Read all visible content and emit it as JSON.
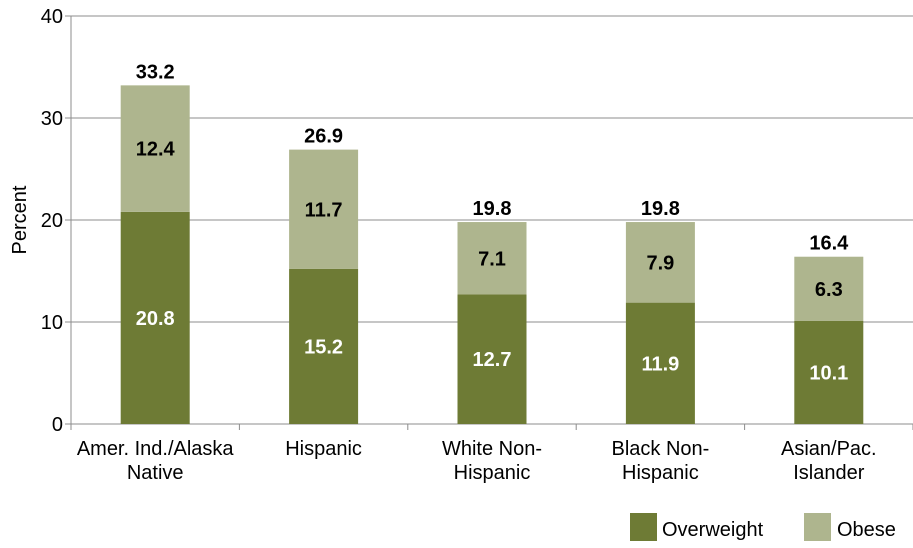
{
  "chart_data": {
    "type": "bar",
    "stacked": true,
    "title": "",
    "xlabel": "",
    "ylabel": "Percent",
    "ylim": [
      0,
      40
    ],
    "yticks": [
      0,
      10,
      20,
      30,
      40
    ],
    "grid": true,
    "legend_position": "bottom-right",
    "categories": [
      [
        "Amer. Ind./Alaska",
        "Native"
      ],
      [
        "Hispanic"
      ],
      [
        "White Non-",
        "Hispanic"
      ],
      [
        "Black Non-",
        "Hispanic"
      ],
      [
        "Asian/Pac.",
        "Islander"
      ]
    ],
    "series": [
      {
        "name": "Overweight",
        "color": "#6e7b35",
        "values": [
          20.8,
          15.2,
          12.7,
          11.9,
          10.1
        ]
      },
      {
        "name": "Obese",
        "color": "#aeb58e",
        "values": [
          12.4,
          11.7,
          7.1,
          7.9,
          6.3
        ]
      }
    ],
    "totals": [
      33.2,
      26.9,
      19.8,
      19.8,
      16.4
    ]
  }
}
